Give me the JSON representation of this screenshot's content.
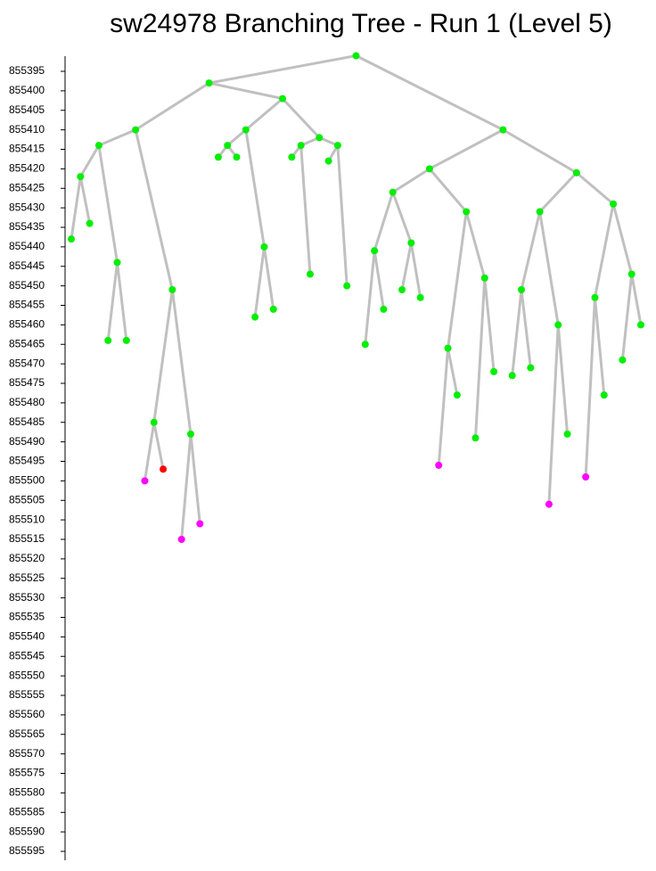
{
  "chart_data": {
    "type": "tree",
    "title": "sw24978 Branching Tree - Run 1 (Level 5)",
    "ylim": [
      855391,
      855597
    ],
    "yticks": [
      855395,
      855400,
      855405,
      855410,
      855415,
      855420,
      855425,
      855430,
      855435,
      855440,
      855445,
      855450,
      855455,
      855460,
      855465,
      855470,
      855475,
      855480,
      855485,
      855490,
      855495,
      855500,
      855505,
      855510,
      855515,
      855520,
      855525,
      855530,
      855535,
      855540,
      855545,
      855550,
      855555,
      855560,
      855565,
      855570,
      855575,
      855580,
      855585,
      855590,
      855595
    ],
    "node_color": "#00ee00",
    "edge_color": "#c0c0c0",
    "tree": {
      "value": 855391,
      "children": [
        {
          "value": 855398,
          "children": [
            {
              "value": 855410,
              "children": [
                {
                  "value": 855414,
                  "children": [
                    {
                      "value": 855422,
                      "children": [
                        {
                          "value": 855438
                        },
                        {
                          "value": 855434
                        }
                      ]
                    },
                    {
                      "value": 855444,
                      "children": [
                        {
                          "value": 855464
                        },
                        {
                          "value": 855464
                        }
                      ]
                    }
                  ]
                },
                {
                  "value": 855451,
                  "children": [
                    {
                      "value": 855485,
                      "children": [
                        {
                          "value": 855500,
                          "color": "#ff00ff"
                        },
                        {
                          "value": 855497,
                          "color": "#ff0000"
                        }
                      ]
                    },
                    {
                      "value": 855488,
                      "children": [
                        {
                          "value": 855515,
                          "color": "#ff00ff"
                        },
                        {
                          "value": 855511,
                          "color": "#ff00ff"
                        }
                      ]
                    }
                  ]
                }
              ]
            },
            {
              "value": 855402,
              "children": [
                {
                  "value": 855410,
                  "children": [
                    {
                      "value": 855414,
                      "children": [
                        {
                          "value": 855417
                        },
                        {
                          "value": 855417
                        }
                      ]
                    },
                    {
                      "value": 855440,
                      "children": [
                        {
                          "value": 855458
                        },
                        {
                          "value": 855456
                        }
                      ]
                    }
                  ]
                },
                {
                  "value": 855412,
                  "children": [
                    {
                      "value": 855414,
                      "children": [
                        {
                          "value": 855417
                        },
                        {
                          "value": 855447
                        }
                      ]
                    },
                    {
                      "value": 855414,
                      "children": [
                        {
                          "value": 855418
                        },
                        {
                          "value": 855450
                        }
                      ]
                    }
                  ]
                }
              ]
            }
          ]
        },
        {
          "value": 855410,
          "children": [
            {
              "value": 855420,
              "children": [
                {
                  "value": 855426,
                  "children": [
                    {
                      "value": 855441,
                      "children": [
                        {
                          "value": 855465
                        },
                        {
                          "value": 855456
                        }
                      ]
                    },
                    {
                      "value": 855439,
                      "children": [
                        {
                          "value": 855451
                        },
                        {
                          "value": 855453
                        }
                      ]
                    }
                  ]
                },
                {
                  "value": 855431,
                  "children": [
                    {
                      "value": 855466,
                      "children": [
                        {
                          "value": 855496,
                          "color": "#ff00ff"
                        },
                        {
                          "value": 855478
                        }
                      ]
                    },
                    {
                      "value": 855448,
                      "children": [
                        {
                          "value": 855489
                        },
                        {
                          "value": 855472
                        }
                      ]
                    }
                  ]
                }
              ]
            },
            {
              "value": 855421,
              "children": [
                {
                  "value": 855431,
                  "children": [
                    {
                      "value": 855451,
                      "children": [
                        {
                          "value": 855473
                        },
                        {
                          "value": 855471
                        }
                      ]
                    },
                    {
                      "value": 855460,
                      "children": [
                        {
                          "value": 855506,
                          "color": "#ff00ff"
                        },
                        {
                          "value": 855488
                        }
                      ]
                    }
                  ]
                },
                {
                  "value": 855429,
                  "children": [
                    {
                      "value": 855453,
                      "children": [
                        {
                          "value": 855499,
                          "color": "#ff00ff"
                        },
                        {
                          "value": 855478
                        }
                      ]
                    },
                    {
                      "value": 855447,
                      "children": [
                        {
                          "value": 855469
                        },
                        {
                          "value": 855460
                        }
                      ]
                    }
                  ]
                }
              ]
            }
          ]
        }
      ]
    }
  }
}
